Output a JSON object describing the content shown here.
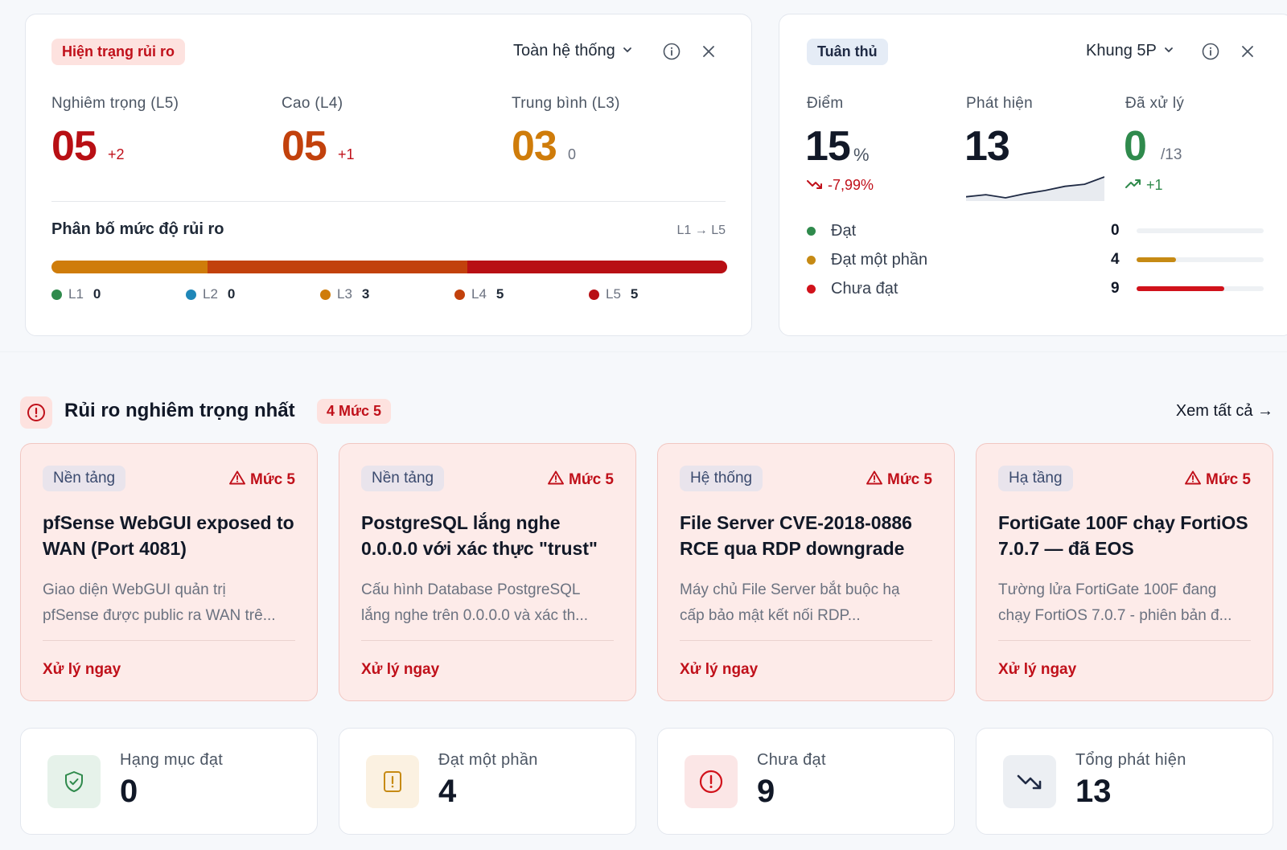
{
  "risk_status": {
    "badge": "Hiện trạng rủi ro",
    "scope": "Toàn hệ thống",
    "metrics": [
      {
        "label": "Nghiêm trọng (L5)",
        "value": "05",
        "delta": "+2"
      },
      {
        "label": "Cao (L4)",
        "value": "05",
        "delta": "+1"
      },
      {
        "label": "Trung bình (L3)",
        "value": "03",
        "delta": "0"
      }
    ],
    "distribution": {
      "title": "Phân bố mức độ rủi ro",
      "range": "L1 → L5",
      "segments": [
        {
          "level": "L3",
          "fraction": 0.231,
          "color": "#cf7c0a"
        },
        {
          "level": "L4",
          "fraction": 0.385,
          "color": "#c2410c"
        },
        {
          "level": "L5",
          "fraction": 0.385,
          "color": "#b80f14"
        }
      ],
      "legend": [
        {
          "label": "L1",
          "count": "0",
          "color": "#2f8a4c"
        },
        {
          "label": "L2",
          "count": "0",
          "color": "#1f87b8"
        },
        {
          "label": "L3",
          "count": "3",
          "color": "#cf7c0a"
        },
        {
          "label": "L4",
          "count": "5",
          "color": "#c2410c"
        },
        {
          "label": "L5",
          "count": "5",
          "color": "#b80f14"
        }
      ]
    }
  },
  "compliance": {
    "badge": "Tuân thủ",
    "framework": "Khung 5P",
    "score": {
      "label": "Điểm",
      "value": "15",
      "unit": "%",
      "delta": "-7,99%"
    },
    "detected": {
      "label": "Phát hiện",
      "value": "13",
      "trend": [
        3,
        5,
        2,
        6,
        9,
        13,
        15,
        22
      ]
    },
    "resolved": {
      "label": "Đã xử lý",
      "value": "0",
      "total": "/13",
      "delta": "+1"
    },
    "rows": [
      {
        "label": "Đạt",
        "count": "0",
        "fraction": 0,
        "color": "#2f8a4c"
      },
      {
        "label": "Đạt một phần",
        "count": "4",
        "fraction": 0.31,
        "color": "#c68a14"
      },
      {
        "label": "Chưa đạt",
        "count": "9",
        "fraction": 0.69,
        "color": "#d1121b"
      }
    ]
  },
  "top_risks": {
    "title": "Rủi ro nghiêm trọng nhất",
    "badge": "4 Mức 5",
    "view_all": "Xem tất cả →",
    "items": [
      {
        "category": "Nền tảng",
        "level": "Mức 5",
        "title": "pfSense WebGUI exposed to WAN (Port 4081)",
        "desc1": "Giao diện WebGUI quản trị",
        "desc2": "pfSense được public ra WAN trê...",
        "action": "Xử lý ngay"
      },
      {
        "category": "Nền tảng",
        "level": "Mức 5",
        "title": "PostgreSQL lắng nghe 0.0.0.0 với xác thực \"trust\"",
        "desc1": "Cấu hình Database PostgreSQL",
        "desc2": "lắng nghe trên 0.0.0.0 và xác th...",
        "action": "Xử lý ngay"
      },
      {
        "category": "Hệ thống",
        "level": "Mức 5",
        "title": "File Server CVE-2018-0886 RCE qua RDP downgrade",
        "desc1": "Máy chủ File Server bắt buộc hạ",
        "desc2": "cấp bảo mật kết nối RDP...",
        "action": "Xử lý ngay"
      },
      {
        "category": "Hạ tầng",
        "level": "Mức 5",
        "title": "FortiGate 100F chạy FortiOS 7.0.7 — đã EOS",
        "desc1": "Tường lửa FortiGate 100F đang",
        "desc2": "chạy FortiOS 7.0.7 - phiên bản đ...",
        "action": "Xử lý ngay"
      }
    ]
  },
  "stats": [
    {
      "label": "Hạng mục đạt",
      "value": "0",
      "icon": "shield-check-icon",
      "bg": "#e6f2ea",
      "fg": "#2f8a4c"
    },
    {
      "label": "Đạt một phần",
      "value": "4",
      "icon": "file-alert-icon",
      "bg": "#fbf1e1",
      "fg": "#c68a14"
    },
    {
      "label": "Chưa đạt",
      "value": "9",
      "icon": "alert-circle-icon",
      "bg": "#fbe6e6",
      "fg": "#d1121b"
    },
    {
      "label": "Tổng phát hiện",
      "value": "13",
      "icon": "trend-down-icon",
      "bg": "#eceff3",
      "fg": "#1f2a44"
    }
  ]
}
